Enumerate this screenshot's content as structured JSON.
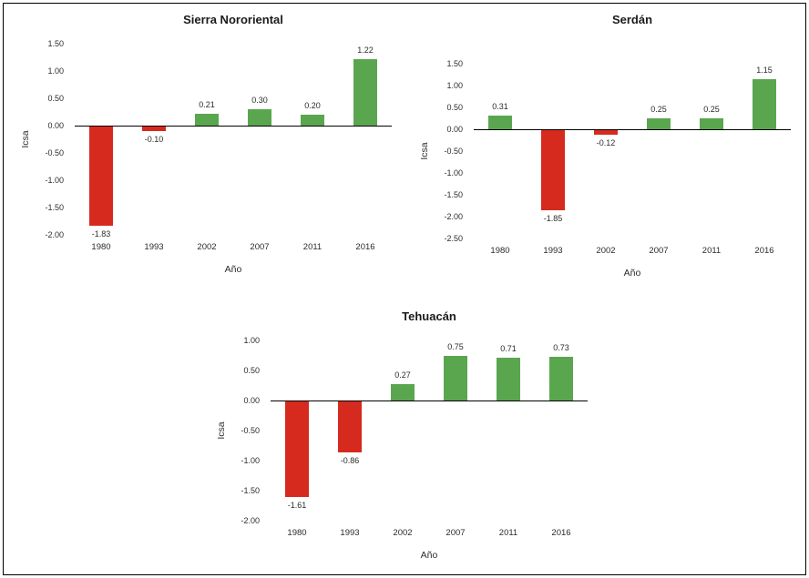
{
  "page": {
    "background_color": "#ffffff",
    "frame_border_color": "#000000"
  },
  "chart_data": [
    {
      "type": "bar",
      "title": "Sierra Nororiental",
      "xlabel": "Año",
      "ylabel": "Icsa",
      "categories": [
        "1980",
        "1993",
        "2002",
        "2007",
        "2011",
        "2016"
      ],
      "values": [
        -1.83,
        -0.1,
        0.21,
        0.3,
        0.2,
        1.22
      ],
      "ylim": [
        -2.0,
        1.5
      ],
      "ytick_step": 0.5,
      "positive_color": "#5aa64f",
      "negative_color": "#d62a1e",
      "grid": false,
      "legend": "none"
    },
    {
      "type": "bar",
      "title": "Serdán",
      "xlabel": "Año",
      "ylabel": "Icsa",
      "categories": [
        "1980",
        "1993",
        "2002",
        "2007",
        "2011",
        "2016"
      ],
      "values": [
        0.31,
        -1.85,
        -0.12,
        0.25,
        0.25,
        1.15
      ],
      "ylim": [
        -2.5,
        1.5
      ],
      "ytick_step": 0.5,
      "positive_color": "#5aa64f",
      "negative_color": "#d62a1e",
      "grid": false,
      "legend": "none"
    },
    {
      "type": "bar",
      "title": "Tehuacán",
      "xlabel": "Año",
      "ylabel": "Icsa",
      "categories": [
        "1980",
        "1993",
        "2002",
        "2007",
        "2011",
        "2016"
      ],
      "values": [
        -1.61,
        -0.86,
        0.27,
        0.75,
        0.71,
        0.73
      ],
      "ylim": [
        -2.0,
        1.0
      ],
      "ytick_step": 0.5,
      "positive_color": "#5aa64f",
      "negative_color": "#d62a1e",
      "grid": false,
      "legend": "none"
    }
  ]
}
